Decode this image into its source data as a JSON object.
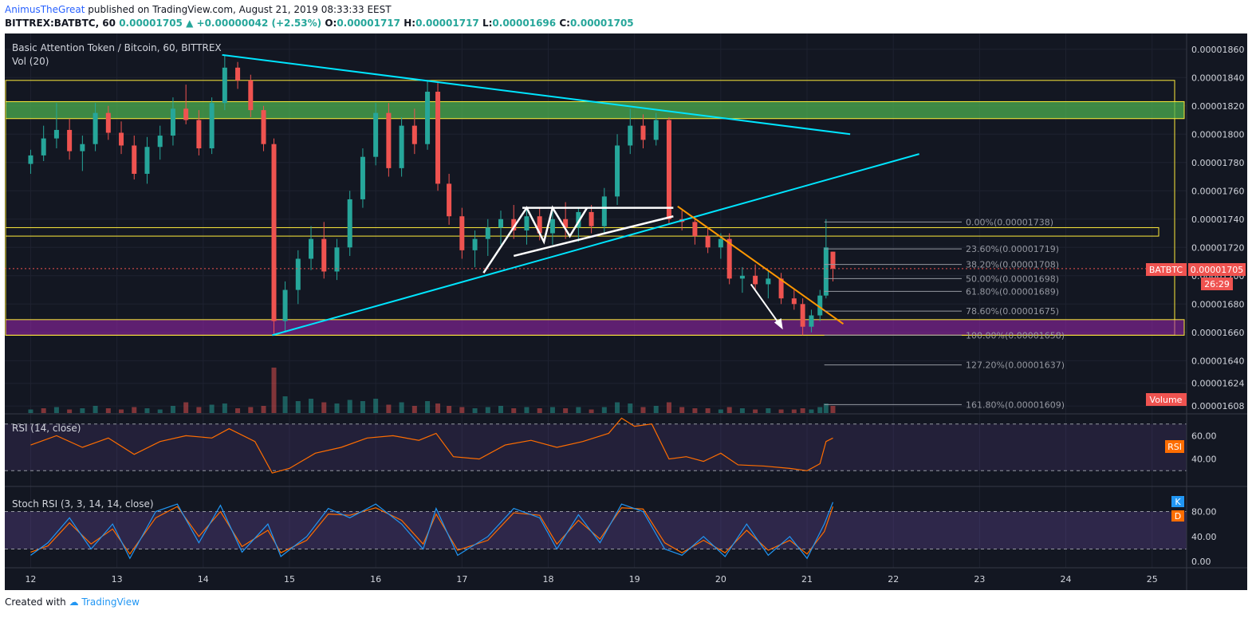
{
  "header": {
    "author": "AnimusTheGreat",
    "published_text": "published on TradingView.com, August 21, 2019 08:33:33 EEST",
    "symbol": "BITTREX:BATBTC, 60",
    "last": "0.00001705",
    "change": "+0.00000042 (+2.53%)",
    "o_label": "O:",
    "o_value": "0.00001717",
    "h_label": "H:",
    "h_value": "0.00001717",
    "l_label": "L:",
    "l_value": "0.00001696",
    "c_label": "C:",
    "c_value": "0.00001705"
  },
  "pane_labels": {
    "main_title": "Basic Attention Token / Bitcoin, 60, BITTREX",
    "vol": "Vol (20)",
    "rsi": "RSI (14, close)",
    "stoch": "Stoch RSI (3, 3, 14, 14, close)"
  },
  "badges": {
    "symbol": "BATBTC",
    "price": "0.00001705",
    "countdown": "26:29",
    "volume": "Volume",
    "rsi": "RSI",
    "k": "K",
    "d": "D"
  },
  "footer": {
    "created_with": "Created with",
    "brand": "TradingView"
  },
  "colors": {
    "background": "#131722",
    "grid": "#1e2230",
    "up": "#26a69a",
    "down": "#ef5350",
    "trend": "#00e5ff",
    "fib": "#9598a1",
    "zone_yellow": "#ffeb3b",
    "zone_green": "#4caf50",
    "zone_purple": "#9c27b0",
    "orange": "#ff9800",
    "rsi_line": "#ff6d00",
    "stoch_k": "#2196f3",
    "stoch_d": "#ff6d00"
  },
  "chart_data": {
    "type": "candlestick",
    "title": "Basic Attention Token / Bitcoin, 60, BITTREX",
    "last_price": 1.705e-05,
    "price_axis": {
      "range": [
        1.603e-05,
        1.87e-05
      ],
      "ticks": [
        "0.00001860",
        "0.00001840",
        "0.00001820",
        "0.00001800",
        "0.00001780",
        "0.00001760",
        "0.00001740",
        "0.00001720",
        "0.00001700",
        "0.00001680",
        "0.00001660",
        "0.00001640",
        "0.00001624",
        "0.00001608"
      ]
    },
    "time_axis": {
      "range": [
        11.7,
        25.4
      ],
      "ticks": [
        12,
        13,
        14,
        15,
        16,
        17,
        18,
        19,
        20,
        21,
        22,
        23,
        24,
        25
      ]
    },
    "candles": [
      [
        12.0,
        1779,
        1789,
        1772,
        1785
      ],
      [
        12.15,
        1785,
        1806,
        1781,
        1797
      ],
      [
        12.3,
        1797,
        1822,
        1790,
        1803
      ],
      [
        12.45,
        1803,
        1811,
        1782,
        1788
      ],
      [
        12.6,
        1788,
        1799,
        1774,
        1793
      ],
      [
        12.75,
        1793,
        1822,
        1788,
        1815
      ],
      [
        12.9,
        1815,
        1820,
        1796,
        1801
      ],
      [
        13.05,
        1801,
        1809,
        1786,
        1792
      ],
      [
        13.2,
        1792,
        1799,
        1768,
        1772
      ],
      [
        13.35,
        1772,
        1798,
        1765,
        1791
      ],
      [
        13.5,
        1791,
        1806,
        1782,
        1799
      ],
      [
        13.65,
        1799,
        1826,
        1792,
        1818
      ],
      [
        13.8,
        1818,
        1835,
        1807,
        1810
      ],
      [
        13.95,
        1810,
        1817,
        1785,
        1790
      ],
      [
        14.1,
        1790,
        1826,
        1786,
        1822
      ],
      [
        14.25,
        1822,
        1856,
        1817,
        1847
      ],
      [
        14.4,
        1847,
        1851,
        1832,
        1838
      ],
      [
        14.55,
        1838,
        1842,
        1812,
        1817
      ],
      [
        14.7,
        1817,
        1820,
        1788,
        1793
      ],
      [
        14.82,
        1793,
        1797,
        1658,
        1668
      ],
      [
        14.95,
        1668,
        1696,
        1660,
        1690
      ],
      [
        15.1,
        1690,
        1718,
        1680,
        1712
      ],
      [
        15.25,
        1712,
        1735,
        1704,
        1726
      ],
      [
        15.4,
        1726,
        1738,
        1698,
        1703
      ],
      [
        15.55,
        1703,
        1726,
        1697,
        1720
      ],
      [
        15.7,
        1720,
        1760,
        1714,
        1754
      ],
      [
        15.85,
        1754,
        1790,
        1748,
        1784
      ],
      [
        16.0,
        1784,
        1822,
        1778,
        1815
      ],
      [
        16.15,
        1815,
        1822,
        1770,
        1776
      ],
      [
        16.3,
        1776,
        1812,
        1770,
        1806
      ],
      [
        16.45,
        1806,
        1818,
        1786,
        1793
      ],
      [
        16.6,
        1793,
        1838,
        1789,
        1830
      ],
      [
        16.72,
        1830,
        1837,
        1760,
        1765
      ],
      [
        16.85,
        1765,
        1772,
        1736,
        1742
      ],
      [
        17.0,
        1742,
        1748,
        1712,
        1718
      ],
      [
        17.15,
        1718,
        1732,
        1706,
        1726
      ],
      [
        17.3,
        1726,
        1740,
        1714,
        1734
      ],
      [
        17.45,
        1734,
        1746,
        1722,
        1740
      ],
      [
        17.6,
        1740,
        1750,
        1726,
        1732
      ],
      [
        17.75,
        1732,
        1748,
        1722,
        1742
      ],
      [
        17.9,
        1742,
        1748,
        1725,
        1730
      ],
      [
        18.05,
        1730,
        1746,
        1722,
        1740
      ],
      [
        18.2,
        1740,
        1752,
        1726,
        1734
      ],
      [
        18.35,
        1734,
        1748,
        1724,
        1745
      ],
      [
        18.5,
        1745,
        1750,
        1730,
        1735
      ],
      [
        18.65,
        1735,
        1762,
        1730,
        1756
      ],
      [
        18.8,
        1756,
        1800,
        1750,
        1792
      ],
      [
        18.95,
        1792,
        1818,
        1786,
        1806
      ],
      [
        19.1,
        1806,
        1814,
        1790,
        1796
      ],
      [
        19.25,
        1796,
        1815,
        1792,
        1810
      ],
      [
        19.4,
        1810,
        1812,
        1736,
        1740
      ],
      [
        19.55,
        1740,
        1746,
        1732,
        1738
      ],
      [
        19.7,
        1738,
        1742,
        1722,
        1728
      ],
      [
        19.85,
        1728,
        1734,
        1716,
        1720
      ],
      [
        20.0,
        1720,
        1730,
        1712,
        1726
      ],
      [
        20.1,
        1726,
        1730,
        1694,
        1698
      ],
      [
        20.25,
        1698,
        1706,
        1688,
        1700
      ],
      [
        20.4,
        1700,
        1708,
        1690,
        1694
      ],
      [
        20.55,
        1694,
        1704,
        1684,
        1698
      ],
      [
        20.7,
        1698,
        1702,
        1680,
        1684
      ],
      [
        20.85,
        1684,
        1690,
        1676,
        1680
      ],
      [
        20.95,
        1680,
        1684,
        1658,
        1664
      ],
      [
        21.05,
        1664,
        1676,
        1660,
        1672
      ],
      [
        21.15,
        1672,
        1690,
        1668,
        1686
      ],
      [
        21.22,
        1686,
        1740,
        1684,
        1720
      ],
      [
        21.3,
        1717,
        1717,
        1696,
        1705
      ]
    ],
    "volume": [
      [
        12.0,
        3,
        1
      ],
      [
        12.15,
        4,
        0
      ],
      [
        12.3,
        5,
        1
      ],
      [
        12.45,
        3,
        0
      ],
      [
        12.6,
        4,
        1
      ],
      [
        12.75,
        6,
        1
      ],
      [
        12.9,
        4,
        0
      ],
      [
        13.05,
        3,
        0
      ],
      [
        13.2,
        5,
        0
      ],
      [
        13.35,
        4,
        1
      ],
      [
        13.5,
        3,
        1
      ],
      [
        13.65,
        6,
        1
      ],
      [
        13.8,
        9,
        0
      ],
      [
        13.95,
        5,
        0
      ],
      [
        14.1,
        7,
        1
      ],
      [
        14.25,
        8,
        1
      ],
      [
        14.4,
        4,
        0
      ],
      [
        14.55,
        5,
        0
      ],
      [
        14.7,
        6,
        0
      ],
      [
        14.82,
        38,
        0
      ],
      [
        14.95,
        14,
        1
      ],
      [
        15.1,
        10,
        1
      ],
      [
        15.25,
        12,
        1
      ],
      [
        15.4,
        9,
        0
      ],
      [
        15.55,
        8,
        1
      ],
      [
        15.7,
        11,
        1
      ],
      [
        15.85,
        10,
        1
      ],
      [
        16.0,
        12,
        1
      ],
      [
        16.15,
        7,
        0
      ],
      [
        16.3,
        9,
        1
      ],
      [
        16.45,
        6,
        0
      ],
      [
        16.6,
        10,
        1
      ],
      [
        16.72,
        8,
        0
      ],
      [
        16.85,
        6,
        0
      ],
      [
        17.0,
        5,
        0
      ],
      [
        17.15,
        4,
        1
      ],
      [
        17.3,
        5,
        1
      ],
      [
        17.45,
        6,
        1
      ],
      [
        17.6,
        4,
        0
      ],
      [
        17.75,
        5,
        1
      ],
      [
        17.9,
        4,
        0
      ],
      [
        18.05,
        5,
        1
      ],
      [
        18.2,
        4,
        0
      ],
      [
        18.35,
        5,
        1
      ],
      [
        18.5,
        3,
        0
      ],
      [
        18.65,
        5,
        1
      ],
      [
        18.8,
        9,
        1
      ],
      [
        18.95,
        8,
        1
      ],
      [
        19.1,
        5,
        0
      ],
      [
        19.25,
        6,
        1
      ],
      [
        19.4,
        9,
        0
      ],
      [
        19.55,
        5,
        0
      ],
      [
        19.7,
        4,
        0
      ],
      [
        19.85,
        4,
        0
      ],
      [
        20.0,
        3,
        1
      ],
      [
        20.1,
        5,
        0
      ],
      [
        20.25,
        4,
        1
      ],
      [
        20.4,
        3,
        0
      ],
      [
        20.55,
        4,
        1
      ],
      [
        20.7,
        3,
        0
      ],
      [
        20.85,
        3,
        0
      ],
      [
        20.95,
        4,
        0
      ],
      [
        21.05,
        3,
        1
      ],
      [
        21.15,
        5,
        1
      ],
      [
        21.22,
        8,
        1
      ],
      [
        21.3,
        6,
        0
      ]
    ],
    "rsi": {
      "label": "RSI (14, close)",
      "levels": [
        70,
        30
      ],
      "ticks": [
        60,
        40
      ],
      "range": [
        22,
        78
      ],
      "values": [
        [
          12.0,
          52
        ],
        [
          12.3,
          60
        ],
        [
          12.6,
          50
        ],
        [
          12.9,
          58
        ],
        [
          13.2,
          44
        ],
        [
          13.5,
          55
        ],
        [
          13.8,
          60
        ],
        [
          14.1,
          58
        ],
        [
          14.3,
          66
        ],
        [
          14.6,
          55
        ],
        [
          14.8,
          28
        ],
        [
          15.0,
          32
        ],
        [
          15.3,
          45
        ],
        [
          15.6,
          50
        ],
        [
          15.9,
          58
        ],
        [
          16.2,
          60
        ],
        [
          16.5,
          56
        ],
        [
          16.7,
          62
        ],
        [
          16.9,
          42
        ],
        [
          17.2,
          40
        ],
        [
          17.5,
          52
        ],
        [
          17.8,
          56
        ],
        [
          18.1,
          50
        ],
        [
          18.4,
          55
        ],
        [
          18.7,
          62
        ],
        [
          18.85,
          75
        ],
        [
          19.0,
          68
        ],
        [
          19.2,
          70
        ],
        [
          19.4,
          40
        ],
        [
          19.6,
          42
        ],
        [
          19.8,
          38
        ],
        [
          20.0,
          45
        ],
        [
          20.2,
          35
        ],
        [
          20.5,
          34
        ],
        [
          20.8,
          32
        ],
        [
          21.0,
          30
        ],
        [
          21.15,
          36
        ],
        [
          21.22,
          55
        ],
        [
          21.3,
          58
        ]
      ]
    },
    "stoch_rsi": {
      "label": "Stoch RSI (3, 3, 14, 14, close)",
      "levels": [
        80,
        20
      ],
      "ticks": [
        80.0,
        40.0,
        0.0
      ],
      "range": [
        -10,
        110
      ],
      "k": [
        [
          12.0,
          10
        ],
        [
          12.2,
          30
        ],
        [
          12.45,
          70
        ],
        [
          12.7,
          20
        ],
        [
          12.95,
          60
        ],
        [
          13.15,
          5
        ],
        [
          13.45,
          80
        ],
        [
          13.7,
          92
        ],
        [
          13.95,
          30
        ],
        [
          14.2,
          90
        ],
        [
          14.45,
          15
        ],
        [
          14.75,
          60
        ],
        [
          14.9,
          8
        ],
        [
          15.2,
          40
        ],
        [
          15.45,
          85
        ],
        [
          15.7,
          70
        ],
        [
          16.0,
          92
        ],
        [
          16.3,
          60
        ],
        [
          16.55,
          20
        ],
        [
          16.7,
          85
        ],
        [
          16.95,
          10
        ],
        [
          17.3,
          40
        ],
        [
          17.6,
          85
        ],
        [
          17.9,
          70
        ],
        [
          18.1,
          20
        ],
        [
          18.35,
          75
        ],
        [
          18.6,
          30
        ],
        [
          18.85,
          92
        ],
        [
          19.1,
          80
        ],
        [
          19.35,
          20
        ],
        [
          19.55,
          10
        ],
        [
          19.8,
          40
        ],
        [
          20.05,
          8
        ],
        [
          20.3,
          60
        ],
        [
          20.55,
          10
        ],
        [
          20.8,
          40
        ],
        [
          21.0,
          5
        ],
        [
          21.2,
          60
        ],
        [
          21.3,
          95
        ]
      ],
      "d": [
        [
          12.0,
          15
        ],
        [
          12.2,
          25
        ],
        [
          12.45,
          62
        ],
        [
          12.7,
          28
        ],
        [
          12.95,
          52
        ],
        [
          13.15,
          12
        ],
        [
          13.45,
          70
        ],
        [
          13.7,
          88
        ],
        [
          13.95,
          40
        ],
        [
          14.2,
          80
        ],
        [
          14.45,
          24
        ],
        [
          14.75,
          50
        ],
        [
          14.9,
          14
        ],
        [
          15.2,
          34
        ],
        [
          15.45,
          76
        ],
        [
          15.7,
          74
        ],
        [
          16.0,
          86
        ],
        [
          16.3,
          66
        ],
        [
          16.55,
          28
        ],
        [
          16.7,
          76
        ],
        [
          16.95,
          18
        ],
        [
          17.3,
          34
        ],
        [
          17.6,
          78
        ],
        [
          17.9,
          74
        ],
        [
          18.1,
          28
        ],
        [
          18.35,
          66
        ],
        [
          18.6,
          36
        ],
        [
          18.85,
          86
        ],
        [
          19.1,
          84
        ],
        [
          19.35,
          30
        ],
        [
          19.55,
          14
        ],
        [
          19.8,
          34
        ],
        [
          20.05,
          14
        ],
        [
          20.3,
          50
        ],
        [
          20.55,
          18
        ],
        [
          20.8,
          34
        ],
        [
          21.0,
          12
        ],
        [
          21.2,
          48
        ],
        [
          21.3,
          88
        ]
      ]
    },
    "fibonacci": [
      {
        "label": "0.00%(0.00001738)",
        "price": 1.738e-05
      },
      {
        "label": "23.60%(0.00001719)",
        "price": 1.719e-05
      },
      {
        "label": "38.20%(0.00001708)",
        "price": 1.708e-05
      },
      {
        "label": "50.00%(0.00001698)",
        "price": 1.698e-05
      },
      {
        "label": "61.80%(0.00001689)",
        "price": 1.689e-05
      },
      {
        "label": "78.60%(0.00001675)",
        "price": 1.675e-05
      },
      {
        "label": "100.00%(0.00001658)",
        "price": 1.658e-05
      },
      {
        "label": "127.20%(0.00001637)",
        "price": 1.637e-05
      },
      {
        "label": "161.80%(0.00001609)",
        "price": 1.609e-05
      }
    ],
    "zones": [
      {
        "name": "outer-range",
        "from": 1.658e-05,
        "to": 1.838e-05,
        "fill": "none"
      },
      {
        "name": "green-resistance",
        "from": 1.811e-05,
        "to": 1.823e-05,
        "fill": "green"
      },
      {
        "name": "mid-support",
        "from": 1.728e-05,
        "to": 1.734e-05,
        "fill": "none"
      },
      {
        "name": "purple-support",
        "from": 1.658e-05,
        "to": 1.669e-05,
        "fill": "purple"
      }
    ],
    "trendlines": [
      {
        "name": "descending-resistance",
        "from": [
          14.22,
          1.856e-05
        ],
        "to": [
          21.5,
          1.8e-05
        ],
        "color": "trend"
      },
      {
        "name": "ascending-support",
        "from": [
          14.8,
          1.658e-05
        ],
        "to": [
          22.3,
          1.786e-05
        ],
        "color": "trend"
      },
      {
        "name": "orange-downtrend",
        "from": [
          19.5,
          1.749e-05
        ],
        "to": [
          21.42,
          1.666e-05
        ],
        "color": "orange"
      }
    ]
  }
}
